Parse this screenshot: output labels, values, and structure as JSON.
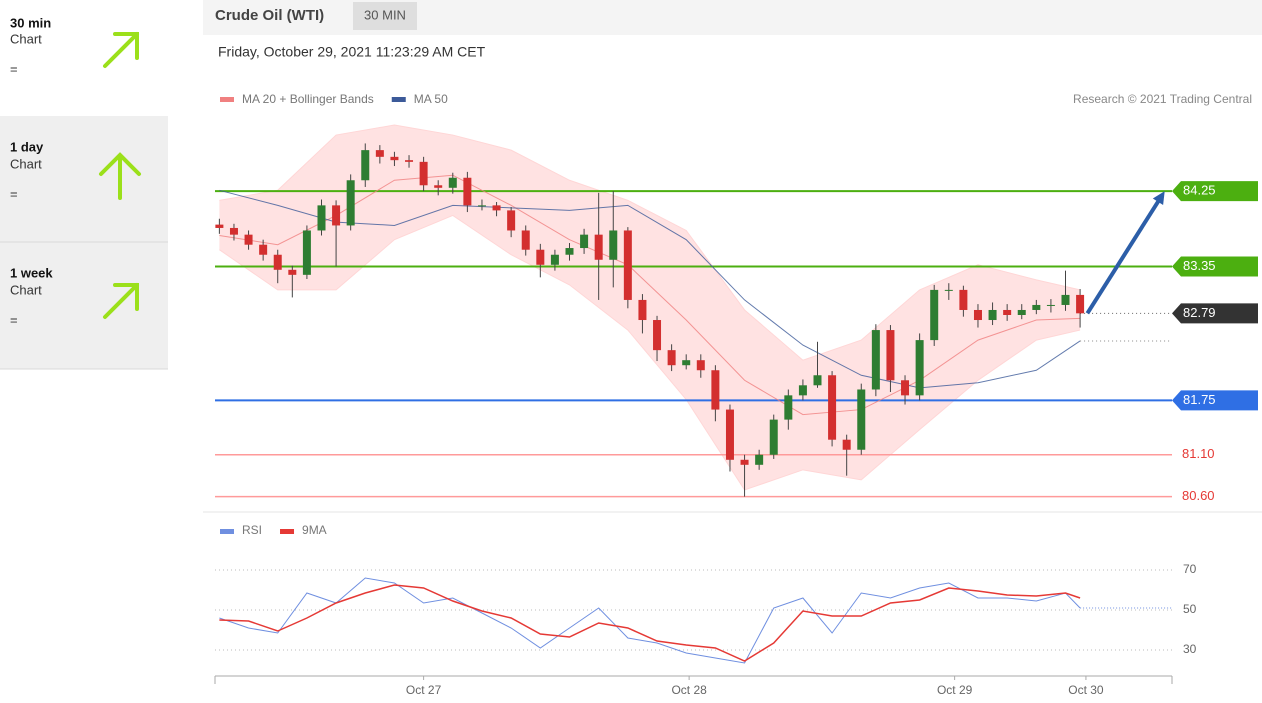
{
  "sidebar": {
    "items": [
      {
        "period": "30 min",
        "label": "Chart",
        "sign": "="
      },
      {
        "period": "1 day",
        "label": "Chart",
        "sign": "="
      },
      {
        "period": "1 week",
        "label": "Chart",
        "sign": "="
      }
    ]
  },
  "chart_data": [
    {
      "type": "candlestick",
      "title": "Crude Oil (WTI)",
      "badge": "30 MIN",
      "subtitle": "Friday, October 29, 2021 11:23:29 AM CET",
      "credit": "Research © 2021 Trading Central",
      "xlim": [
        -0.3,
        65.3
      ],
      "ylim": [
        80.44,
        85.1
      ],
      "up_color": "#2e7d32",
      "down_color": "#d32f2f",
      "candles": {
        "open": [
          83.85,
          83.81,
          83.73,
          83.61,
          83.49,
          83.31,
          83.25,
          83.78,
          84.08,
          83.84,
          84.38,
          84.74,
          84.66,
          84.62,
          84.6,
          84.32,
          84.29,
          84.41,
          84.08,
          84.08,
          84.02,
          83.78,
          83.55,
          83.37,
          83.49,
          83.57,
          83.73,
          83.43,
          83.78,
          82.95,
          82.71,
          82.35,
          82.17,
          82.23,
          82.11,
          81.64,
          81.04,
          80.98,
          81.1,
          81.52,
          81.81,
          81.93,
          82.05,
          81.28,
          81.16,
          81.88,
          82.59,
          81.99,
          81.81,
          82.47,
          83.07,
          83.07,
          82.83,
          82.71,
          82.83,
          82.77,
          82.83,
          82.89,
          82.89,
          83.01
        ],
        "high": [
          83.92,
          83.86,
          83.78,
          83.67,
          83.55,
          83.36,
          83.84,
          84.15,
          84.14,
          84.45,
          84.82,
          84.8,
          84.72,
          84.68,
          84.66,
          84.38,
          84.47,
          84.48,
          84.15,
          84.12,
          84.06,
          83.84,
          83.62,
          83.55,
          83.63,
          83.8,
          84.23,
          84.25,
          83.82,
          83.02,
          82.76,
          82.42,
          82.3,
          82.3,
          82.17,
          81.7,
          81.1,
          81.16,
          81.58,
          81.88,
          82.0,
          82.45,
          82.1,
          81.34,
          81.95,
          82.66,
          82.65,
          82.05,
          82.55,
          83.13,
          83.15,
          83.12,
          82.9,
          82.92,
          82.9,
          82.9,
          82.95,
          82.96,
          83.3,
          83.08
        ],
        "low": [
          83.74,
          83.66,
          83.55,
          83.42,
          83.15,
          82.98,
          83.2,
          83.72,
          83.35,
          83.78,
          84.3,
          84.58,
          84.55,
          84.53,
          84.25,
          84.2,
          84.22,
          84.0,
          84.02,
          83.95,
          83.7,
          83.48,
          83.22,
          83.3,
          83.42,
          83.5,
          82.95,
          83.1,
          82.85,
          82.55,
          82.22,
          82.1,
          82.12,
          82.02,
          81.5,
          80.9,
          80.6,
          80.92,
          81.05,
          81.4,
          81.75,
          81.9,
          81.2,
          80.85,
          81.1,
          81.8,
          81.85,
          81.7,
          81.75,
          82.4,
          82.95,
          82.75,
          82.62,
          82.65,
          82.7,
          82.72,
          82.78,
          82.8,
          82.82,
          82.62
        ],
        "close": [
          83.81,
          83.73,
          83.61,
          83.49,
          83.31,
          83.25,
          83.78,
          84.08,
          83.84,
          84.38,
          84.74,
          84.66,
          84.62,
          84.6,
          84.32,
          84.29,
          84.41,
          84.08,
          84.08,
          84.02,
          83.78,
          83.55,
          83.37,
          83.49,
          83.57,
          83.73,
          83.43,
          83.78,
          82.95,
          82.71,
          82.35,
          82.17,
          82.23,
          82.11,
          81.64,
          81.04,
          80.98,
          81.1,
          81.52,
          81.81,
          81.93,
          82.05,
          81.28,
          81.16,
          81.88,
          82.59,
          81.99,
          81.81,
          82.47,
          83.07,
          83.07,
          82.83,
          82.71,
          82.83,
          82.77,
          82.83,
          82.89,
          82.89,
          83.01,
          82.79
        ]
      },
      "lines": [
        {
          "name": "MA 20 + Bollinger Bands",
          "color": "#f08080",
          "band_color": "#ffd6d6",
          "x": [
            0,
            4,
            8,
            12,
            16,
            20,
            24,
            28,
            32,
            36,
            40,
            44,
            48,
            52,
            56,
            59
          ],
          "values": [
            83.72,
            83.61,
            83.96,
            84.38,
            84.44,
            84.08,
            83.67,
            83.37,
            82.71,
            81.99,
            81.58,
            81.64,
            81.99,
            82.47,
            82.71,
            82.73
          ],
          "upper": [
            84.14,
            84.26,
            84.92,
            85.04,
            84.92,
            84.74,
            84.38,
            84.14,
            83.78,
            82.83,
            82.23,
            82.47,
            83.07,
            83.37,
            83.19,
            83.07
          ],
          "lower": [
            83.55,
            83.07,
            83.07,
            83.67,
            83.96,
            83.49,
            83.13,
            82.59,
            81.76,
            80.68,
            80.92,
            80.8,
            81.4,
            81.99,
            82.47,
            82.59
          ]
        },
        {
          "name": "MA 50",
          "color": "#3c5a99",
          "x": [
            0,
            4,
            8,
            12,
            16,
            20,
            24,
            28,
            32,
            36,
            40,
            44,
            48,
            52,
            56,
            59
          ],
          "values": [
            84.26,
            84.08,
            83.88,
            83.84,
            84.08,
            84.05,
            84.02,
            84.08,
            83.67,
            82.95,
            82.41,
            82.05,
            81.9,
            81.96,
            82.11,
            82.46
          ]
        }
      ],
      "levels": [
        {
          "value": 84.25,
          "color": "#4caf10",
          "style": "box"
        },
        {
          "value": 83.35,
          "color": "#4caf10",
          "style": "box"
        },
        {
          "value": 82.79,
          "color": "#333333",
          "style": "current"
        },
        {
          "value": 81.75,
          "color": "#2f6fe4",
          "style": "box"
        },
        {
          "value": 81.1,
          "label": "81.10",
          "color": "#ff9a9a",
          "style": "text"
        },
        {
          "value": 80.6,
          "label": "80.60",
          "color": "#ff9a9a",
          "style": "text"
        }
      ],
      "forecast": {
        "x": [
          59.5,
          64.8
        ],
        "values": [
          82.79,
          84.25
        ],
        "color": "#2c5ea8"
      }
    },
    {
      "type": "line",
      "xlim": [
        -0.3,
        65.3
      ],
      "ylim": [
        17.5,
        82.5
      ],
      "yticks": [
        30,
        50,
        70
      ],
      "xticks": [
        {
          "value": 14,
          "label": "Oct 27"
        },
        {
          "value": 32.2,
          "label": "Oct 28"
        },
        {
          "value": 50.4,
          "label": "Oct 29"
        },
        {
          "value": 59.4,
          "label": "Oct 30"
        }
      ],
      "series": [
        {
          "name": "RSI",
          "color": "#6f8fe0",
          "x": [
            0,
            2,
            4,
            6,
            8,
            10,
            12,
            14,
            16,
            18,
            20,
            22,
            24,
            26,
            28,
            30,
            32,
            34,
            36,
            38,
            40,
            42,
            44,
            46,
            48,
            50,
            52,
            54,
            56,
            58,
            59
          ],
          "values": [
            46,
            41,
            38.5,
            58.5,
            53.5,
            66,
            63.5,
            53.5,
            56,
            48.5,
            41,
            31,
            41,
            51,
            36,
            33.5,
            28.5,
            26,
            23.5,
            51,
            56,
            38.5,
            58.5,
            56,
            61,
            63.5,
            56,
            56,
            54.5,
            58.5,
            51
          ]
        },
        {
          "name": "9MA",
          "color": "#e53935",
          "x": [
            0,
            2,
            4,
            6,
            8,
            10,
            12,
            14,
            16,
            18,
            20,
            22,
            24,
            26,
            28,
            30,
            32,
            34,
            36,
            38,
            40,
            42,
            44,
            46,
            48,
            50,
            52,
            54,
            56,
            58,
            59
          ],
          "values": [
            45,
            44.5,
            39.5,
            46,
            53.5,
            58.5,
            62.5,
            61,
            54.5,
            49.5,
            46,
            38,
            36.5,
            43.5,
            41,
            34.5,
            32.5,
            31,
            24.5,
            33.5,
            49.5,
            47,
            47,
            53.5,
            55,
            61,
            59.5,
            57.5,
            57,
            58.5,
            56
          ]
        }
      ]
    }
  ]
}
